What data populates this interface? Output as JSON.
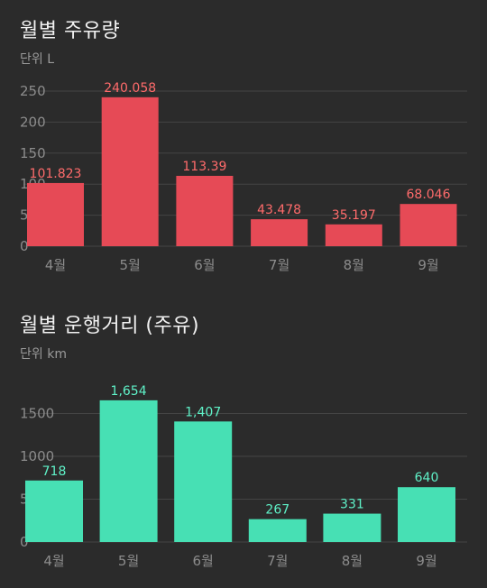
{
  "chart_data": [
    {
      "type": "bar",
      "title": "월별 주유량",
      "unit_label": "단위 L",
      "categories": [
        "4월",
        "5월",
        "6월",
        "7월",
        "8월",
        "9월"
      ],
      "values": [
        101.823,
        240.058,
        113.39,
        43.478,
        35.197,
        68.046
      ],
      "value_labels": [
        "101.823",
        "240.058",
        "113.39",
        "43.478",
        "35.197",
        "68.046"
      ],
      "yticks": [
        0,
        50,
        100,
        150,
        200,
        250
      ],
      "ytick_labels": [
        "0",
        "50",
        "100",
        "150",
        "200",
        "250"
      ],
      "ylim": [
        0,
        250
      ],
      "grid": true,
      "bar_color": "#e64a56",
      "label_color": "#ff6b6b"
    },
    {
      "type": "bar",
      "title": "월별 운행거리 (주유)",
      "unit_label": "단위 km",
      "categories": [
        "4월",
        "5월",
        "6월",
        "7월",
        "8월",
        "9월"
      ],
      "values": [
        718,
        1654,
        1407,
        267,
        331,
        640
      ],
      "value_labels": [
        "718",
        "1,654",
        "1,407",
        "267",
        "331",
        "640"
      ],
      "yticks": [
        0,
        500,
        1000,
        1500
      ],
      "ytick_labels": [
        "0",
        "500",
        "1000",
        "1500"
      ],
      "ylim": [
        0,
        1800
      ],
      "grid": true,
      "bar_color": "#47e0b4",
      "label_color": "#5ff2c8"
    }
  ],
  "colors": {
    "background": "#2b2b2b",
    "grid": "#444444",
    "axis_text": "#8c8c8c",
    "title_text": "#f2f2f2",
    "unit_text": "#9a9a9a"
  }
}
